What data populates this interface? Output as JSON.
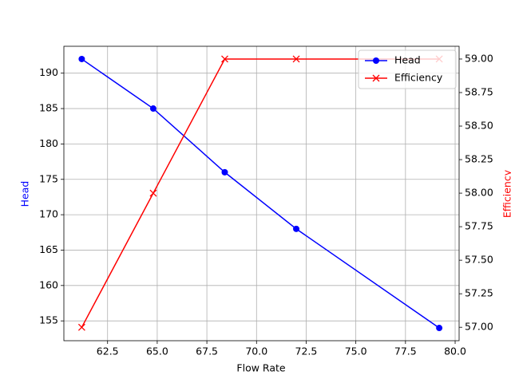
{
  "chart_data": {
    "type": "line",
    "xlabel": "Flow Rate",
    "ylabel": "Head",
    "y2label": "Efficiency",
    "x": [
      61.2,
      64.8,
      68.4,
      72.0,
      79.2
    ],
    "series": [
      {
        "name": "Head",
        "color": "#0000ff",
        "marker": "o",
        "values": [
          192,
          185,
          176,
          168,
          154
        ]
      },
      {
        "name": "Efficiency",
        "color": "#ff0000",
        "marker": "x",
        "axis": "y2",
        "values": [
          57,
          58,
          59,
          59,
          59
        ]
      }
    ],
    "xlim": [
      60.3,
      80.2
    ],
    "ylim": [
      152.2,
      193.8
    ],
    "y2lim": [
      56.9,
      59.095
    ],
    "xticks": [
      {
        "value": 62.5,
        "label": "62.5"
      },
      {
        "value": 65,
        "label": "65.0"
      },
      {
        "value": 67.5,
        "label": "67.5"
      },
      {
        "value": 70,
        "label": "70.0"
      },
      {
        "value": 72.5,
        "label": "72.5"
      },
      {
        "value": 75,
        "label": "75.0"
      },
      {
        "value": 77.5,
        "label": "77.5"
      },
      {
        "value": 80,
        "label": "80.0"
      }
    ],
    "yticks": [
      155,
      160,
      165,
      170,
      175,
      180,
      185,
      190
    ],
    "y2ticks": [
      {
        "value": 57,
        "label": "57.00"
      },
      {
        "value": 57.25,
        "label": "57.25"
      },
      {
        "value": 57.5,
        "label": "57.50"
      },
      {
        "value": 57.75,
        "label": "57.75"
      },
      {
        "value": 58,
        "label": "58.00"
      },
      {
        "value": 58.25,
        "label": "58.25"
      },
      {
        "value": 58.5,
        "label": "58.50"
      },
      {
        "value": 58.75,
        "label": "58.75"
      },
      {
        "value": 59,
        "label": "59.00"
      }
    ],
    "grid": true,
    "legend": "upper right"
  }
}
